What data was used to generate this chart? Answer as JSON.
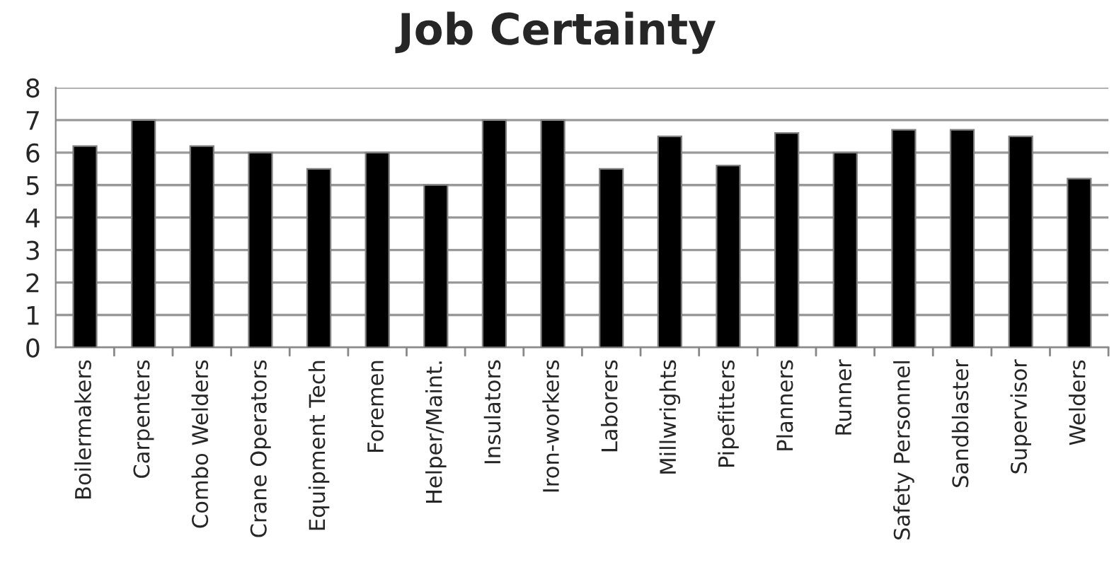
{
  "chart_data": {
    "type": "bar",
    "title": "Job Certainty",
    "categories": [
      "Boilermakers",
      "Carpenters",
      "Combo Welders",
      "Crane Operators",
      "Equipment Tech",
      "Foremen",
      "Helper/Maint.",
      "Insulators",
      "Iron-workers",
      "Laborers",
      "Millwrights",
      "Pipefitters",
      "Planners",
      "Runner",
      "Safety Personnel",
      "Sandblaster",
      "Supervisor",
      "Welders"
    ],
    "values": [
      6.2,
      7,
      6.2,
      6,
      5.5,
      6,
      5,
      7,
      7,
      5.5,
      6.5,
      5.6,
      6.6,
      6,
      6.7,
      6.7,
      6.5,
      5.2
    ],
    "color": "#000000",
    "ylim": [
      0,
      8
    ],
    "yticks": [
      0,
      1,
      2,
      3,
      4,
      5,
      6,
      7,
      8
    ],
    "grid": "y",
    "legend": false
  }
}
